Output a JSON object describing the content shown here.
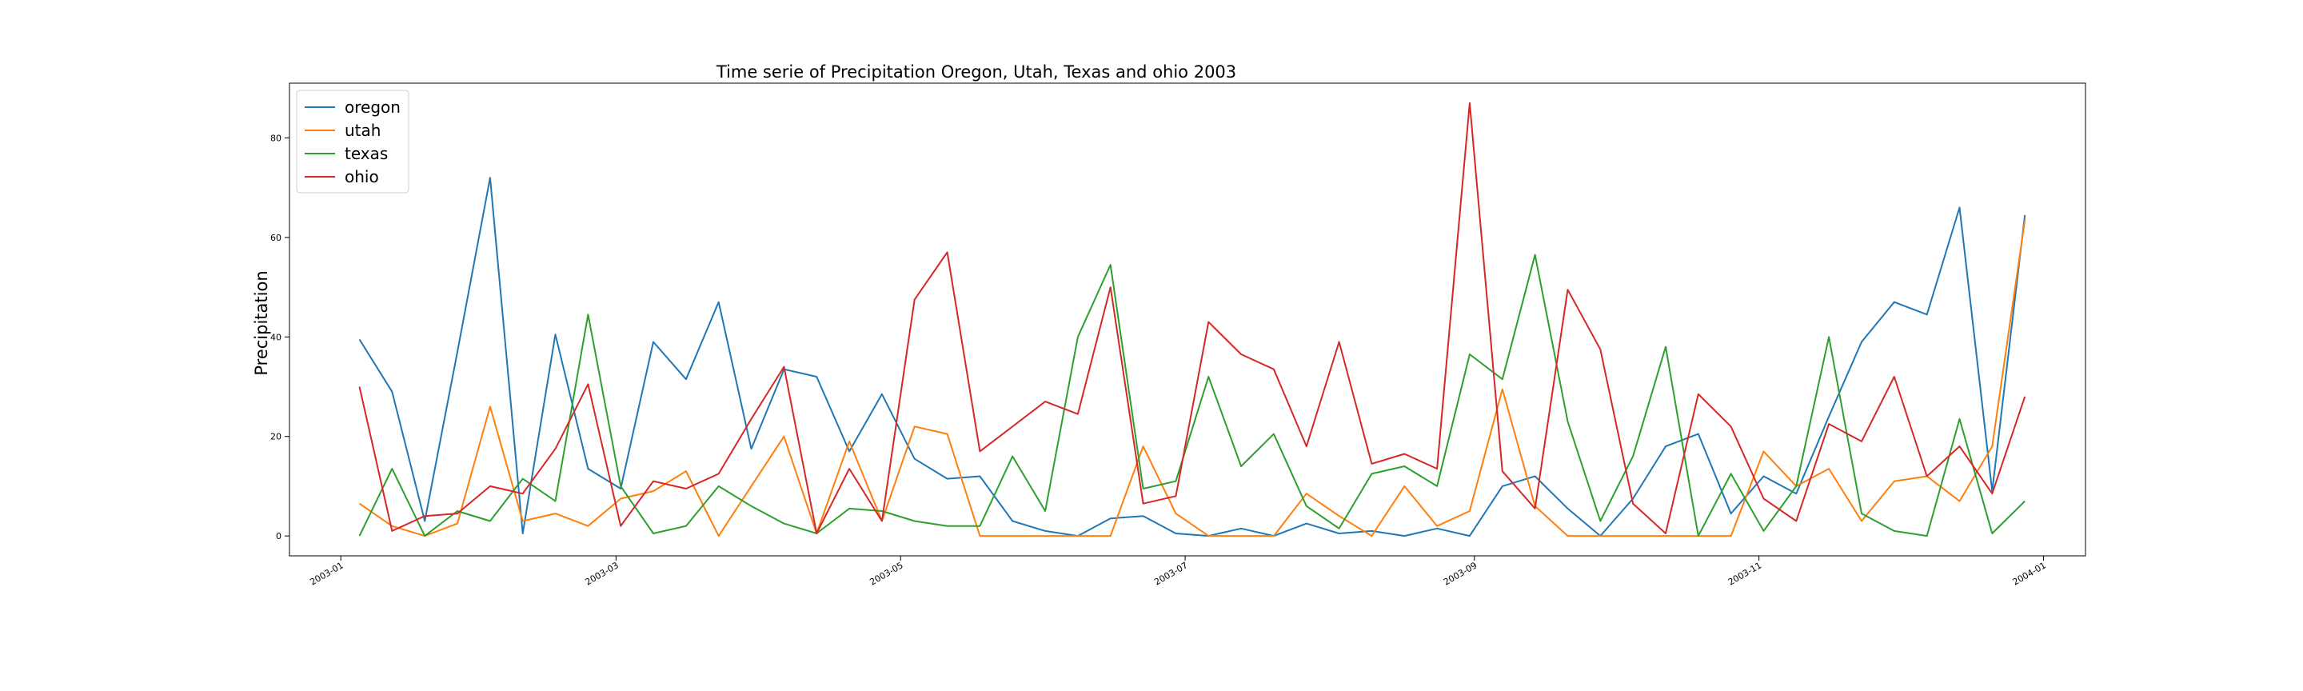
{
  "chart_data": {
    "type": "line",
    "title": "Time serie of Precipitation Oregon, Utah, Texas and ohio 2003",
    "xlabel": "",
    "ylabel": "Precipitation",
    "x_type": "date",
    "xlim": [
      "2002-12-21",
      "2004-01-10"
    ],
    "ylim": [
      -4,
      91
    ],
    "x_ticks": [
      "2003-01",
      "2003-03",
      "2003-05",
      "2003-07",
      "2003-09",
      "2003-11",
      "2004-01"
    ],
    "y_ticks": [
      0,
      20,
      40,
      60,
      80
    ],
    "grid": false,
    "legend": "top-left",
    "x": [
      "2003-01-05",
      "2003-01-12",
      "2003-01-19",
      "2003-01-26",
      "2003-02-02",
      "2003-02-09",
      "2003-02-16",
      "2003-02-23",
      "2003-03-02",
      "2003-03-09",
      "2003-03-16",
      "2003-03-23",
      "2003-03-30",
      "2003-04-06",
      "2003-04-13",
      "2003-04-20",
      "2003-04-27",
      "2003-05-04",
      "2003-05-11",
      "2003-05-18",
      "2003-05-25",
      "2003-06-01",
      "2003-06-08",
      "2003-06-15",
      "2003-06-22",
      "2003-06-29",
      "2003-07-06",
      "2003-07-13",
      "2003-07-20",
      "2003-07-27",
      "2003-08-03",
      "2003-08-10",
      "2003-08-17",
      "2003-08-24",
      "2003-08-31",
      "2003-09-07",
      "2003-09-14",
      "2003-09-21",
      "2003-09-28",
      "2003-10-05",
      "2003-10-12",
      "2003-10-19",
      "2003-10-26",
      "2003-11-02",
      "2003-11-09",
      "2003-11-16",
      "2003-11-23",
      "2003-11-30",
      "2003-12-07",
      "2003-12-14",
      "2003-12-21",
      "2003-12-28"
    ],
    "series": [
      {
        "name": "oregon",
        "color": "#1f77b4",
        "values": [
          39.5,
          29,
          3,
          37,
          72,
          0.5,
          40.5,
          13.5,
          9.5,
          39,
          31.5,
          47,
          17.5,
          33.5,
          32,
          17,
          28.5,
          15.5,
          11.5,
          12,
          3,
          1,
          0,
          3.5,
          4,
          0.5,
          0,
          1.5,
          0,
          2.5,
          0.5,
          1,
          0,
          1.5,
          0,
          10,
          12,
          5.5,
          0,
          7.5,
          18,
          20.5,
          4.5,
          12,
          8.5,
          24,
          39,
          47,
          44.5,
          66,
          9,
          64.5
        ]
      },
      {
        "name": "utah",
        "color": "#ff7f0e",
        "values": [
          6.5,
          2,
          0,
          2.5,
          26,
          3,
          4.5,
          2,
          7.5,
          9,
          13,
          0,
          10,
          20,
          0.5,
          19,
          3,
          22,
          20.5,
          0,
          0,
          0,
          0,
          0,
          18,
          4.5,
          0,
          0,
          0,
          8.5,
          4,
          0,
          10,
          2,
          5,
          29.5,
          6,
          0,
          0,
          0,
          0,
          0,
          0,
          17,
          10,
          13.5,
          3,
          11,
          12,
          7,
          18,
          63.5
        ]
      },
      {
        "name": "texas",
        "color": "#2ca02c",
        "values": [
          0,
          13.5,
          0,
          5,
          3,
          11.5,
          7,
          44.5,
          10,
          0.5,
          2,
          10,
          6,
          2.5,
          0.5,
          5.5,
          5,
          3,
          2,
          2,
          16,
          5,
          40,
          54.5,
          9.5,
          11,
          32,
          14,
          20.5,
          6,
          1.5,
          12.5,
          14,
          10,
          36.5,
          31.5,
          56.5,
          23,
          3,
          16,
          38,
          0,
          12.5,
          1,
          10,
          40,
          4.5,
          1,
          0,
          23.5,
          0.5,
          7
        ]
      },
      {
        "name": "ohio",
        "color": "#d62728",
        "values": [
          30,
          1,
          4,
          4.5,
          10,
          8.5,
          17.5,
          30.5,
          2,
          11,
          9.5,
          12.5,
          23.5,
          34,
          0.5,
          13.5,
          3,
          47.5,
          57,
          17,
          22,
          27,
          24.5,
          50,
          6.5,
          8,
          43,
          36.5,
          33.5,
          18,
          39,
          14.5,
          16.5,
          13.5,
          87,
          13,
          5.5,
          49.5,
          37.5,
          6.5,
          0.5,
          28.5,
          22,
          7.5,
          3,
          22.5,
          19,
          32,
          12,
          18,
          8.5,
          28
        ]
      }
    ]
  }
}
